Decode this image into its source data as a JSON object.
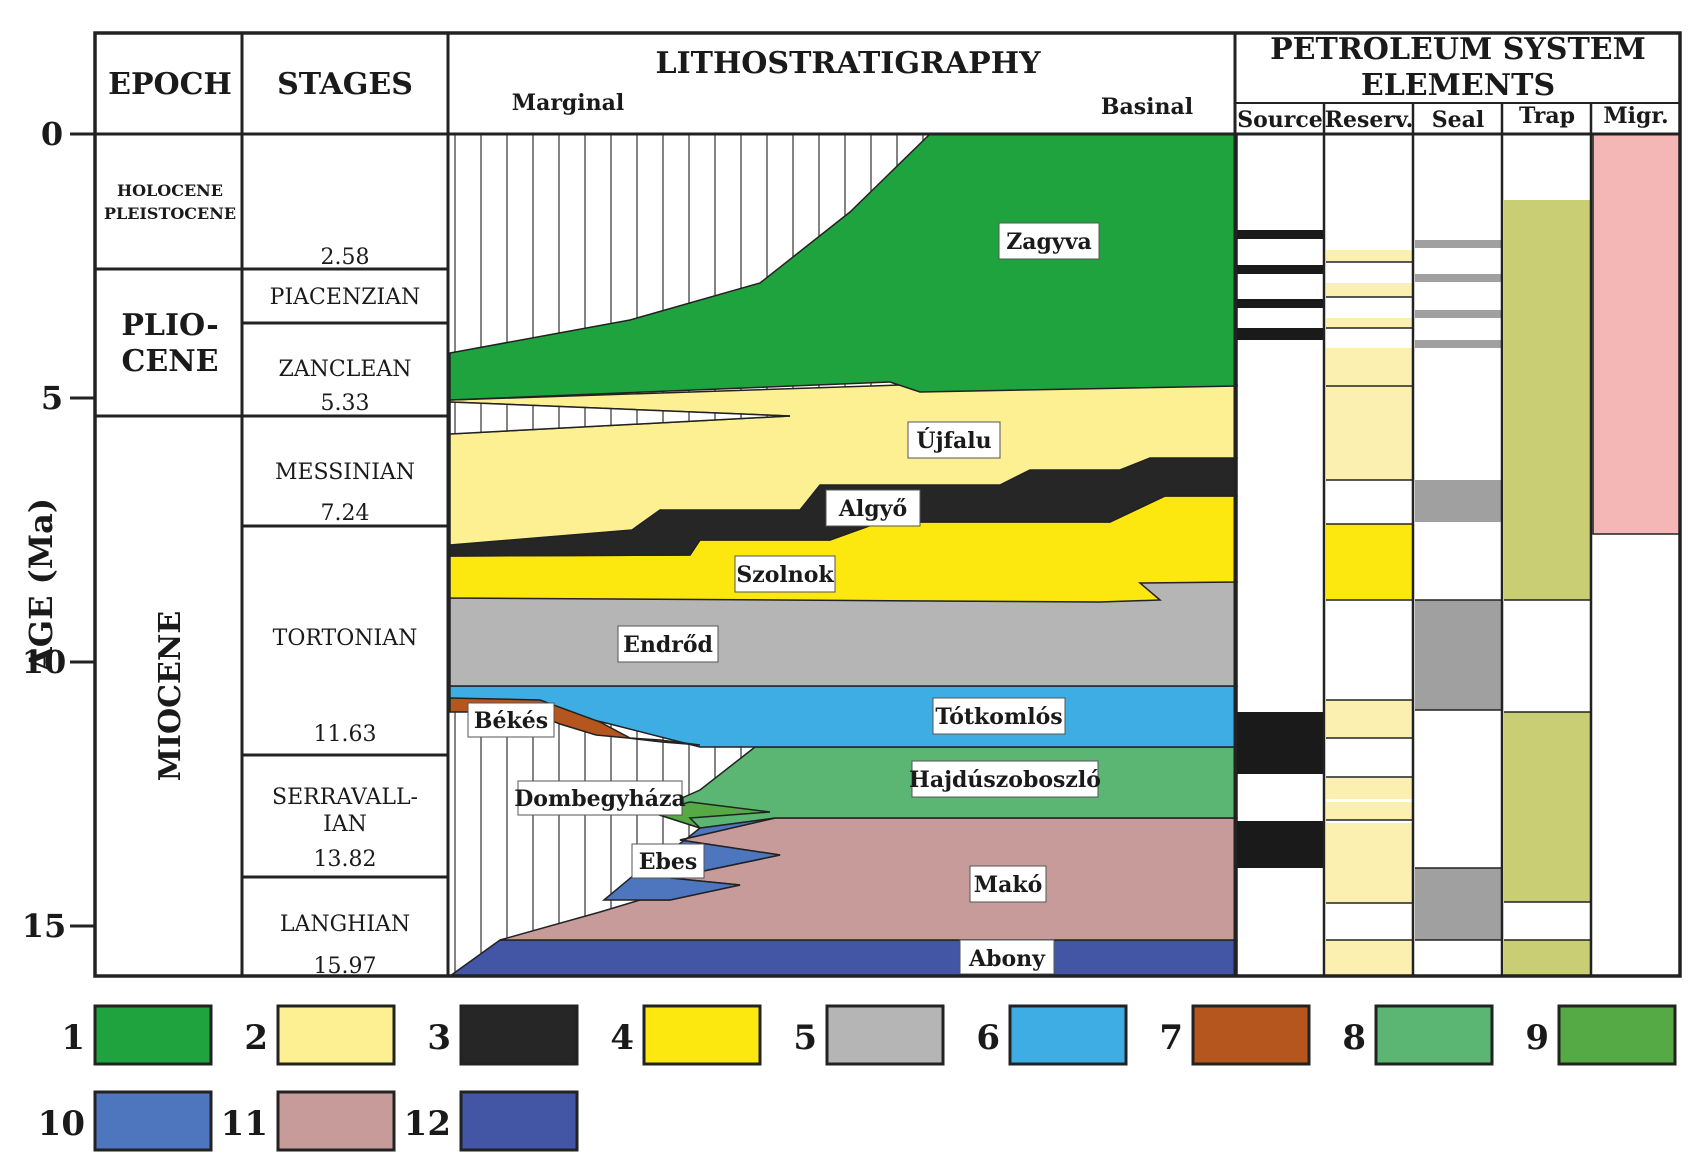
{
  "headers": {
    "epoch": "EPOCH",
    "stages": "STAGES",
    "litho": "LITHOSTRATIGRAPHY",
    "marginal": "Marginal",
    "basinal": "Basinal",
    "petroleum_line1": "PETROLEUM SYSTEM",
    "petroleum_line2": "ELEMENTS",
    "source": "Source",
    "reservoir": "Reserv.",
    "seal": "Seal",
    "trap": "Trap",
    "migration": "Migr."
  },
  "axis": {
    "label": "AGE (Ma)",
    "ticks": [
      "0",
      "5",
      "10",
      "15"
    ]
  },
  "epochs": {
    "holocene_line1": "HOLOCENE",
    "holocene_line2": "PLEISTOCENE",
    "pliocene_line1": "PLIO-",
    "pliocene_line2": "CENE",
    "miocene": "MIOCENE"
  },
  "stages": {
    "piacenzian": "PIACENZIAN",
    "zanclean": "ZANCLEAN",
    "messinian": "MESSINIAN",
    "tortonian": "TORTONIAN",
    "serravallian_line1": "SERRAVALL-",
    "serravallian_line2": "IAN",
    "langhian": "LANGHIAN"
  },
  "boundaries": {
    "b1": "2.58",
    "b2": "5.33",
    "b3": "7.24",
    "b4": "11.63",
    "b5": "13.82",
    "b6": "15.97"
  },
  "formations": {
    "zagyva": "Zagyva",
    "ujfalu": "Újfalu",
    "algyo": "Algyő",
    "szolnok": "Szolnok",
    "endrod": "Endrőd",
    "bekes": "Békés",
    "totkomlos": "Tótkomlós",
    "dombegyhaza": "Dombegyháza",
    "hajduszoboszlo": "Hajdúszoboszló",
    "ebes": "Ebes",
    "mako": "Makó",
    "abony": "Abony"
  },
  "colors": {
    "zagyva": "#1fa33f",
    "ujfalu": "#fcf093",
    "algyo": "#262626",
    "szolnok": "#fce80f",
    "endrod": "#b4b5b4",
    "totkomlos": "#3eade4",
    "bekes": "#b5561f",
    "hajduszoboszlo": "#5bb573",
    "dombegyhaza": "#55aa45",
    "ebes": "#4d76be",
    "mako": "#c69b99",
    "abony": "#4355a5",
    "reservoir_pale": "#fbf0b0",
    "seal_grey": "#a0a0a0",
    "trap": "#c9cd73",
    "migration": "#f5b6b6"
  },
  "legend": [
    {
      "num": "1",
      "color": "#1fa33f"
    },
    {
      "num": "2",
      "color": "#fcf093"
    },
    {
      "num": "3",
      "color": "#262626"
    },
    {
      "num": "4",
      "color": "#fce80f"
    },
    {
      "num": "5",
      "color": "#b4b5b4"
    },
    {
      "num": "6",
      "color": "#3eade4"
    },
    {
      "num": "7",
      "color": "#b5561f"
    },
    {
      "num": "8",
      "color": "#5bb573"
    },
    {
      "num": "9",
      "color": "#55aa45"
    },
    {
      "num": "10",
      "color": "#4d76be"
    },
    {
      "num": "11",
      "color": "#c69b99"
    },
    {
      "num": "12",
      "color": "#4355a5"
    }
  ]
}
